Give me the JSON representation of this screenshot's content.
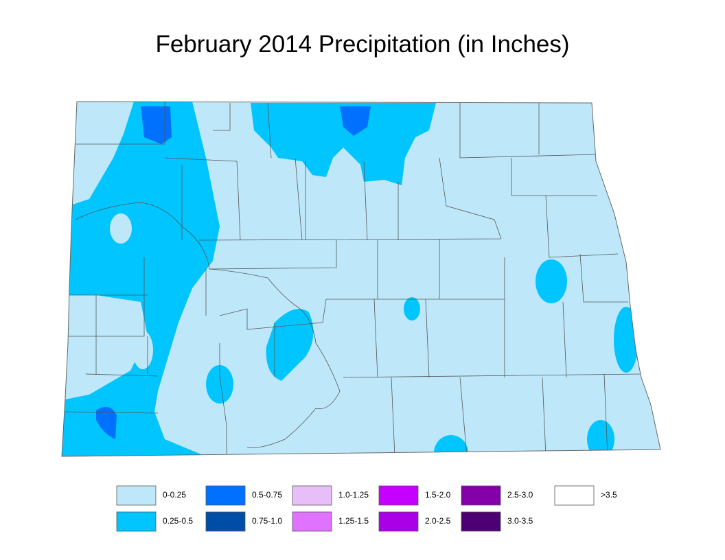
{
  "header": {
    "title": "February 2014 Precipitation (in Inches)"
  },
  "legend": {
    "items": [
      {
        "label": "0-0.25",
        "color": "#bee8fa"
      },
      {
        "label": "0.25-0.5",
        "color": "#00c5ff"
      },
      {
        "label": "0.5-0.75",
        "color": "#0070ff"
      },
      {
        "label": "0.75-1.0",
        "color": "#004da8"
      },
      {
        "label": "1.0-1.25",
        "color": "#e8bef8"
      },
      {
        "label": "1.25-1.5",
        "color": "#df73ff"
      },
      {
        "label": "1.5-2.0",
        "color": "#c500ff"
      },
      {
        "label": "2.0-2.5",
        "color": "#a900e6"
      },
      {
        "label": "2.5-3.0",
        "color": "#8400a8"
      },
      {
        "label": "3.0-3.5",
        "color": "#4c0073"
      },
      {
        "label": ">3.5",
        "color": "#ffffff"
      }
    ]
  }
}
